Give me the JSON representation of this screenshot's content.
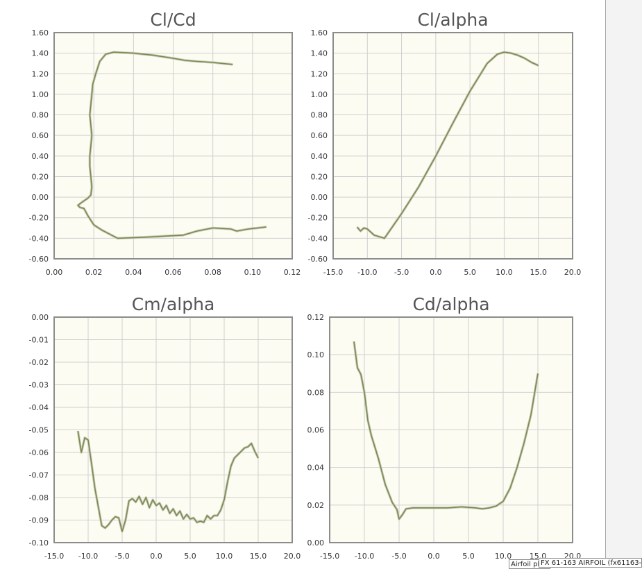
{
  "chart_data": [
    {
      "type": "line",
      "title": "Cl/Cd",
      "xlabel": "",
      "ylabel": "",
      "xlim": [
        0,
        0.12
      ],
      "ylim": [
        -0.6,
        1.6
      ],
      "xticks": [
        "0.00",
        "0.02",
        "0.04",
        "0.06",
        "0.08",
        "0.10",
        "0.12"
      ],
      "yticks": [
        "-0.60",
        "-0.40",
        "-0.20",
        "0.00",
        "0.20",
        "0.40",
        "0.60",
        "0.80",
        "1.00",
        "1.20",
        "1.40",
        "1.60"
      ],
      "grid": true,
      "color": "#7d8a53",
      "series": [
        {
          "x": [
            0.107,
            0.098,
            0.092,
            0.089,
            0.08,
            0.072,
            0.065,
            0.055,
            0.045,
            0.032,
            0.028,
            0.024,
            0.02,
            0.017,
            0.015,
            0.013,
            0.012,
            0.014,
            0.017,
            0.0185,
            0.019,
            0.0185,
            0.018,
            0.018,
            0.0185,
            0.019,
            0.0185,
            0.018,
            0.0185,
            0.019,
            0.0195,
            0.021,
            0.023,
            0.026,
            0.03,
            0.04,
            0.05,
            0.06,
            0.066,
            0.072,
            0.08,
            0.085,
            0.09
          ],
          "y": [
            -0.29,
            -0.31,
            -0.33,
            -0.31,
            -0.3,
            -0.33,
            -0.37,
            -0.38,
            -0.39,
            -0.4,
            -0.36,
            -0.32,
            -0.27,
            -0.18,
            -0.11,
            -0.1,
            -0.08,
            -0.05,
            -0.01,
            0.02,
            0.1,
            0.2,
            0.3,
            0.4,
            0.5,
            0.6,
            0.7,
            0.8,
            0.9,
            1.0,
            1.1,
            1.2,
            1.32,
            1.39,
            1.41,
            1.4,
            1.38,
            1.35,
            1.33,
            1.32,
            1.31,
            1.3,
            1.29
          ]
        }
      ]
    },
    {
      "type": "line",
      "title": "Cl/alpha",
      "xlabel": "",
      "ylabel": "",
      "xlim": [
        -15,
        20
      ],
      "ylim": [
        -0.6,
        1.6
      ],
      "xticks": [
        "-15.0",
        "-10.0",
        "-5.0",
        "0.0",
        "5.0",
        "10.0",
        "15.0",
        "20.0"
      ],
      "yticks": [
        "-0.60",
        "-0.40",
        "-0.20",
        "0.00",
        "0.20",
        "0.40",
        "0.60",
        "0.80",
        "1.00",
        "1.20",
        "1.40",
        "1.60"
      ],
      "grid": true,
      "color": "#7d8a53",
      "series": [
        {
          "x": [
            -11.5,
            -11,
            -10.5,
            -10,
            -9.5,
            -9,
            -8,
            -7.5,
            -5,
            -2.5,
            0,
            2.5,
            5,
            7.5,
            9,
            10,
            11,
            12,
            13,
            14,
            15
          ],
          "y": [
            -0.29,
            -0.33,
            -0.3,
            -0.31,
            -0.34,
            -0.37,
            -0.39,
            -0.4,
            -0.16,
            0.1,
            0.4,
            0.72,
            1.03,
            1.3,
            1.39,
            1.41,
            1.4,
            1.38,
            1.35,
            1.31,
            1.28
          ]
        }
      ]
    },
    {
      "type": "line",
      "title": "Cm/alpha",
      "xlabel": "",
      "ylabel": "",
      "xlim": [
        -15,
        20
      ],
      "ylim": [
        -0.1,
        0.0
      ],
      "xticks": [
        "-15.0",
        "-10.0",
        "-5.0",
        "0.0",
        "5.0",
        "10.0",
        "15.0",
        "20.0"
      ],
      "yticks": [
        "-0.10",
        "-0.09",
        "-0.08",
        "-0.07",
        "-0.06",
        "-0.05",
        "-0.04",
        "-0.03",
        "-0.02",
        "-0.01",
        "0.00"
      ],
      "grid": true,
      "color": "#7d8a53",
      "series": [
        {
          "x": [
            -11.5,
            -11,
            -10.5,
            -10,
            -9.5,
            -9,
            -8,
            -7.5,
            -7,
            -6.5,
            -6,
            -5.5,
            -5,
            -4.5,
            -4,
            -3.5,
            -3,
            -2.5,
            -2,
            -1.5,
            -1,
            -0.5,
            0,
            0.5,
            1,
            1.5,
            2,
            2.5,
            3,
            3.5,
            4,
            4.5,
            5,
            5.5,
            6,
            6.5,
            7,
            7.5,
            8,
            8.5,
            9,
            9.5,
            10,
            10.5,
            11,
            11.5,
            12,
            12.5,
            13,
            13.5,
            14,
            14.5,
            15
          ],
          "y": [
            -0.0505,
            -0.06,
            -0.0535,
            -0.0545,
            -0.065,
            -0.076,
            -0.0925,
            -0.0935,
            -0.092,
            -0.09,
            -0.0885,
            -0.089,
            -0.095,
            -0.09,
            -0.0815,
            -0.0805,
            -0.082,
            -0.0795,
            -0.083,
            -0.08,
            -0.0845,
            -0.081,
            -0.0835,
            -0.0825,
            -0.0855,
            -0.0835,
            -0.087,
            -0.085,
            -0.088,
            -0.086,
            -0.0895,
            -0.0875,
            -0.0895,
            -0.089,
            -0.091,
            -0.0905,
            -0.091,
            -0.088,
            -0.0895,
            -0.088,
            -0.088,
            -0.0855,
            -0.081,
            -0.073,
            -0.066,
            -0.0625,
            -0.061,
            -0.0595,
            -0.058,
            -0.0575,
            -0.056,
            -0.0595,
            -0.0625
          ]
        }
      ]
    },
    {
      "type": "line",
      "title": "Cd/alpha",
      "xlabel": "",
      "ylabel": "",
      "xlim": [
        -15,
        20
      ],
      "ylim": [
        0.0,
        0.12
      ],
      "xticks": [
        "-15.0",
        "-10.0",
        "-5.0",
        "0.0",
        "5.0",
        "10.0",
        "15.0",
        "20.0"
      ],
      "yticks": [
        "0.00",
        "0.02",
        "0.04",
        "0.06",
        "0.08",
        "0.10",
        "0.12"
      ],
      "grid": true,
      "color": "#7d8a53",
      "series": [
        {
          "x": [
            -11.5,
            -11,
            -10.5,
            -10,
            -9.5,
            -9,
            -8,
            -7,
            -6,
            -5.3,
            -5,
            -4.5,
            -4,
            -3,
            -2,
            0,
            2,
            4,
            6,
            7,
            8,
            9,
            10,
            11,
            12,
            13,
            14,
            15
          ],
          "y": [
            0.107,
            0.093,
            0.0895,
            0.08,
            0.065,
            0.057,
            0.045,
            0.031,
            0.0215,
            0.0175,
            0.0125,
            0.015,
            0.018,
            0.0185,
            0.0185,
            0.0185,
            0.0185,
            0.019,
            0.0185,
            0.018,
            0.0185,
            0.0195,
            0.022,
            0.029,
            0.04,
            0.053,
            0.068,
            0.09
          ]
        }
      ]
    }
  ],
  "tooltips": {
    "back": "Airfoil plot",
    "front": "FX 61-163 AIRFOIL (fx61163-il)"
  }
}
